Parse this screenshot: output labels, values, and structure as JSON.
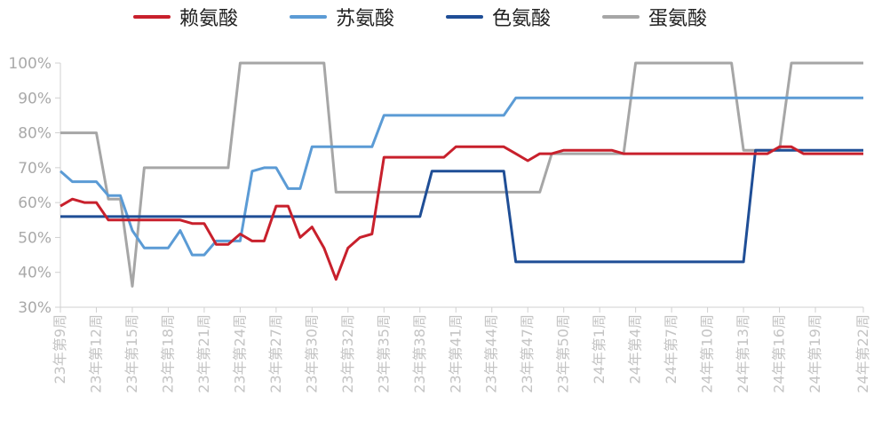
{
  "chart_data": {
    "type": "line",
    "title": "",
    "xlabel": "",
    "ylabel": "",
    "ylim": [
      30,
      100
    ],
    "yticks": [
      "30%",
      "40%",
      "50%",
      "60%",
      "70%",
      "80%",
      "90%",
      "100%"
    ],
    "ytick_values": [
      30,
      40,
      50,
      60,
      70,
      80,
      90,
      100
    ],
    "grid": false,
    "legend_position": "top",
    "x_count": 68,
    "xticks": [
      {
        "index": 0,
        "label": "23年第9周"
      },
      {
        "index": 3,
        "label": "23年第12周"
      },
      {
        "index": 6,
        "label": "23年第15周"
      },
      {
        "index": 9,
        "label": "23年第18周"
      },
      {
        "index": 12,
        "label": "23年第21周"
      },
      {
        "index": 15,
        "label": "23年第24周"
      },
      {
        "index": 18,
        "label": "23年第27周"
      },
      {
        "index": 21,
        "label": "23年第30周"
      },
      {
        "index": 24,
        "label": "23年第32周"
      },
      {
        "index": 27,
        "label": "23年第35周"
      },
      {
        "index": 30,
        "label": "23年第38周"
      },
      {
        "index": 33,
        "label": "23年第41周"
      },
      {
        "index": 36,
        "label": "23年第44周"
      },
      {
        "index": 39,
        "label": "23年第47周"
      },
      {
        "index": 42,
        "label": "23年第50周"
      },
      {
        "index": 45,
        "label": "24年第1周"
      },
      {
        "index": 48,
        "label": "24年第4周"
      },
      {
        "index": 51,
        "label": "24年第7周"
      },
      {
        "index": 54,
        "label": "24年第10周"
      },
      {
        "index": 57,
        "label": "24年第13周"
      },
      {
        "index": 60,
        "label": "24年第16周"
      },
      {
        "index": 63,
        "label": "24年第19周"
      },
      {
        "index": 67,
        "label": "24年第22周"
      }
    ],
    "series": [
      {
        "name": "赖氨酸",
        "color": "#c8202c",
        "values": [
          59,
          61,
          60,
          60,
          55,
          55,
          55,
          55,
          55,
          55,
          55,
          54,
          54,
          48,
          48,
          51,
          49,
          49,
          59,
          59,
          50,
          53,
          47,
          38,
          47,
          50,
          51,
          73,
          73,
          73,
          73,
          73,
          73,
          76,
          76,
          76,
          76,
          76,
          74,
          72,
          74,
          74,
          75,
          75,
          75,
          75,
          75,
          74,
          74,
          74,
          74,
          74,
          74,
          74,
          74,
          74,
          74,
          74,
          74,
          74,
          76,
          76,
          74,
          74,
          74,
          74,
          74,
          74
        ]
      },
      {
        "name": "苏氨酸",
        "color": "#5b9bd5",
        "values": [
          69,
          66,
          66,
          66,
          62,
          62,
          52,
          47,
          47,
          47,
          52,
          45,
          45,
          49,
          49,
          49,
          69,
          70,
          70,
          64,
          64,
          76,
          76,
          76,
          76,
          76,
          76,
          85,
          85,
          85,
          85,
          85,
          85,
          85,
          85,
          85,
          85,
          85,
          90,
          90,
          90,
          90,
          90,
          90,
          90,
          90,
          90,
          90,
          90,
          90,
          90,
          90,
          90,
          90,
          90,
          90,
          90,
          90,
          90,
          90,
          90,
          90,
          90,
          90,
          90,
          90,
          90,
          90
        ]
      },
      {
        "name": "色氨酸",
        "color": "#1f4e96",
        "values": [
          56,
          56,
          56,
          56,
          56,
          56,
          56,
          56,
          56,
          56,
          56,
          56,
          56,
          56,
          56,
          56,
          56,
          56,
          56,
          56,
          56,
          56,
          56,
          56,
          56,
          56,
          56,
          56,
          56,
          56,
          56,
          69,
          69,
          69,
          69,
          69,
          69,
          69,
          43,
          43,
          43,
          43,
          43,
          43,
          43,
          43,
          43,
          43,
          43,
          43,
          43,
          43,
          43,
          43,
          43,
          43,
          43,
          43,
          75,
          75,
          75,
          75,
          75,
          75,
          75,
          75,
          75,
          75
        ]
      },
      {
        "name": "蛋氨酸",
        "color": "#a6a6a6",
        "values": [
          80,
          80,
          80,
          80,
          61,
          61,
          36,
          70,
          70,
          70,
          70,
          70,
          70,
          70,
          70,
          100,
          100,
          100,
          100,
          100,
          100,
          100,
          100,
          63,
          63,
          63,
          63,
          63,
          63,
          63,
          63,
          63,
          63,
          63,
          63,
          63,
          63,
          63,
          63,
          63,
          63,
          74,
          74,
          74,
          74,
          74,
          74,
          74,
          100,
          100,
          100,
          100,
          100,
          100,
          100,
          100,
          100,
          75,
          75,
          75,
          75,
          100,
          100,
          100,
          100,
          100,
          100,
          100
        ]
      }
    ]
  }
}
